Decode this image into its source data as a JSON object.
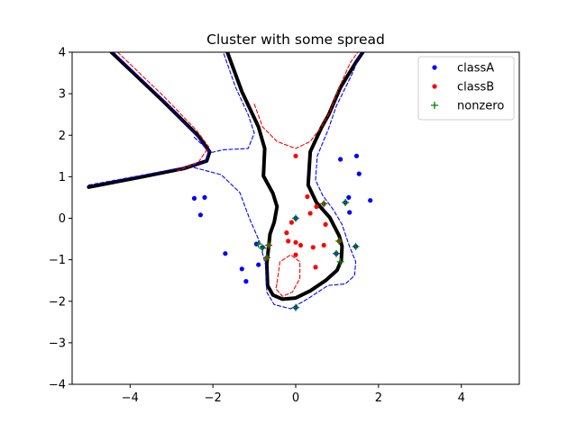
{
  "chart_data": {
    "type": "scatter",
    "title": "Cluster with some spread",
    "xlabel": "",
    "ylabel": "",
    "xlim": [
      -5.4,
      5.4
    ],
    "ylim": [
      -4,
      4
    ],
    "xticks": [
      -4,
      -2,
      0,
      2,
      4
    ],
    "yticks": [
      -4,
      -3,
      -2,
      -1,
      0,
      1,
      2,
      3,
      4
    ],
    "xtick_labels": [
      "−4",
      "−2",
      "0",
      "2",
      "4"
    ],
    "ytick_labels": [
      "−4",
      "−3",
      "−2",
      "−1",
      "0",
      "1",
      "2",
      "3",
      "4"
    ],
    "legend_position": "top-right",
    "series": [
      {
        "name": "classA",
        "color": "#0000ff",
        "marker": "dot",
        "points": [
          [
            -2.45,
            0.48
          ],
          [
            -2.2,
            0.5
          ],
          [
            -2.3,
            0.08
          ],
          [
            -1.7,
            -0.85
          ],
          [
            -1.3,
            -1.22
          ],
          [
            -1.2,
            -1.52
          ],
          [
            -0.9,
            -1.12
          ],
          [
            -0.95,
            -0.62
          ],
          [
            -0.8,
            -0.7
          ],
          [
            1.08,
            1.42
          ],
          [
            1.47,
            1.5
          ],
          [
            1.53,
            1.07
          ],
          [
            1.8,
            0.43
          ],
          [
            1.28,
            0.5
          ],
          [
            1.3,
            0.14
          ],
          [
            1.2,
            0.38
          ],
          [
            1.45,
            -0.68
          ],
          [
            0.98,
            -0.85
          ],
          [
            0.0,
            0.0
          ],
          [
            0.0,
            -2.15
          ]
        ]
      },
      {
        "name": "classB",
        "color": "#ff0000",
        "marker": "dot",
        "points": [
          [
            0.0,
            1.5
          ],
          [
            0.28,
            0.52
          ],
          [
            0.5,
            0.28
          ],
          [
            0.35,
            0.12
          ],
          [
            -0.1,
            -0.1
          ],
          [
            0.68,
            0.35
          ],
          [
            0.72,
            -0.15
          ],
          [
            -0.22,
            -0.35
          ],
          [
            -0.18,
            -0.55
          ],
          [
            0.0,
            -0.58
          ],
          [
            0.12,
            -0.65
          ],
          [
            0.42,
            -0.7
          ],
          [
            0.68,
            -0.65
          ],
          [
            0.0,
            -0.88
          ],
          [
            -0.65,
            -0.65
          ],
          [
            -0.7,
            -0.95
          ],
          [
            0.48,
            -1.18
          ],
          [
            1.05,
            -0.55
          ]
        ]
      },
      {
        "name": "nonzero",
        "color": "#008000",
        "marker": "plus",
        "points": [
          [
            -0.9,
            -0.62
          ],
          [
            -0.8,
            -0.72
          ],
          [
            -0.65,
            -0.65
          ],
          [
            -0.7,
            -0.95
          ],
          [
            0.0,
            0.0
          ],
          [
            1.2,
            0.38
          ],
          [
            1.45,
            -0.68
          ],
          [
            0.98,
            -0.85
          ],
          [
            1.05,
            -0.55
          ],
          [
            0.0,
            -2.15
          ],
          [
            0.68,
            0.35
          ],
          [
            1.08,
            -1.05
          ]
        ]
      }
    ],
    "contours": [
      {
        "level": 0,
        "color": "#000000",
        "style": "solid",
        "segments": [
          [
            [
              -5.0,
              0.75
            ],
            [
              -3.8,
              0.98
            ],
            [
              -2.7,
              1.2
            ],
            [
              -2.15,
              1.38
            ],
            [
              -2.08,
              1.6
            ],
            [
              -2.35,
              1.98
            ],
            [
              -3.2,
              2.82
            ],
            [
              -4.45,
              4.0
            ]
          ],
          [
            [
              -1.65,
              4.0
            ],
            [
              -1.3,
              3.05
            ],
            [
              -0.9,
              2.2
            ],
            [
              -0.75,
              1.68
            ],
            [
              -0.78,
              1.02
            ],
            [
              -0.55,
              0.6
            ],
            [
              -0.45,
              0.28
            ],
            [
              -0.52,
              -0.1
            ],
            [
              -0.62,
              -0.38
            ],
            [
              -0.7,
              -1.1
            ],
            [
              -0.68,
              -1.62
            ],
            [
              -0.55,
              -1.85
            ],
            [
              -0.32,
              -1.95
            ],
            [
              0.0,
              -1.92
            ],
            [
              0.35,
              -1.75
            ],
            [
              0.72,
              -1.5
            ],
            [
              1.0,
              -1.25
            ],
            [
              1.1,
              -1.02
            ],
            [
              1.12,
              -0.68
            ],
            [
              1.05,
              -0.42
            ],
            [
              0.82,
              0.02
            ],
            [
              0.5,
              0.38
            ],
            [
              0.3,
              0.8
            ],
            [
              0.35,
              1.6
            ],
            [
              0.62,
              2.18
            ],
            [
              0.8,
              2.5
            ],
            [
              1.08,
              3.15
            ],
            [
              1.45,
              3.75
            ],
            [
              1.62,
              4.0
            ]
          ]
        ]
      },
      {
        "level": 1,
        "color": "#0000ff",
        "style": "dashed",
        "segments": [
          [
            [
              -5.0,
              0.8
            ],
            [
              -3.8,
              1.02
            ],
            [
              -2.7,
              1.23
            ],
            [
              -2.2,
              1.35
            ],
            [
              -2.1,
              1.6
            ],
            [
              -2.4,
              2.0
            ],
            [
              -3.2,
              2.85
            ],
            [
              -4.4,
              4.0
            ]
          ],
          [
            [
              -2.45,
              1.95
            ],
            [
              -2.05,
              1.58
            ],
            [
              -1.75,
              1.65
            ],
            [
              -1.15,
              1.68
            ],
            [
              -1.0,
              2.05
            ],
            [
              -1.15,
              2.5
            ],
            [
              -1.45,
              3.15
            ],
            [
              -1.75,
              4.0
            ]
          ],
          [
            [
              -2.45,
              1.22
            ],
            [
              -1.8,
              1.05
            ],
            [
              -1.35,
              0.62
            ],
            [
              -1.12,
              0.0
            ],
            [
              -0.88,
              -0.55
            ],
            [
              -0.72,
              -1.15
            ],
            [
              -0.7,
              -1.78
            ],
            [
              -0.52,
              -2.08
            ],
            [
              -0.12,
              -2.18
            ],
            [
              0.32,
              -1.92
            ],
            [
              0.78,
              -1.62
            ],
            [
              1.2,
              -1.58
            ],
            [
              1.42,
              -1.38
            ],
            [
              1.45,
              -1.05
            ],
            [
              1.3,
              -0.68
            ],
            [
              1.12,
              -0.15
            ],
            [
              0.9,
              0.22
            ],
            [
              0.65,
              0.55
            ],
            [
              0.48,
              0.92
            ],
            [
              0.52,
              1.5
            ],
            [
              0.78,
              2.12
            ],
            [
              0.98,
              2.7
            ],
            [
              1.35,
              3.45
            ],
            [
              1.58,
              4.0
            ]
          ]
        ]
      },
      {
        "level": -1,
        "color": "#ff0000",
        "style": "dashed",
        "segments": [
          [
            [
              -4.3,
              4.0
            ],
            [
              -3.2,
              2.95
            ],
            [
              -2.4,
              2.12
            ],
            [
              -2.1,
              1.72
            ],
            [
              -2.35,
              1.35
            ],
            [
              -2.9,
              1.12
            ]
          ],
          [
            [
              -1.0,
              2.75
            ],
            [
              -0.8,
              2.2
            ],
            [
              -0.45,
              1.85
            ],
            [
              0.0,
              1.68
            ],
            [
              0.35,
              1.85
            ],
            [
              0.62,
              2.2
            ],
            [
              0.82,
              2.55
            ],
            [
              1.05,
              3.15
            ],
            [
              1.32,
              3.75
            ],
            [
              1.5,
              4.0
            ]
          ],
          [
            [
              -0.45,
              -1.55
            ],
            [
              -0.38,
              -1.05
            ],
            [
              -0.12,
              -0.88
            ],
            [
              0.1,
              -1.05
            ],
            [
              0.1,
              -1.45
            ],
            [
              -0.08,
              -1.78
            ],
            [
              -0.32,
              -1.88
            ],
            [
              -0.48,
              -1.7
            ],
            [
              -0.45,
              -1.55
            ]
          ]
        ]
      }
    ]
  }
}
